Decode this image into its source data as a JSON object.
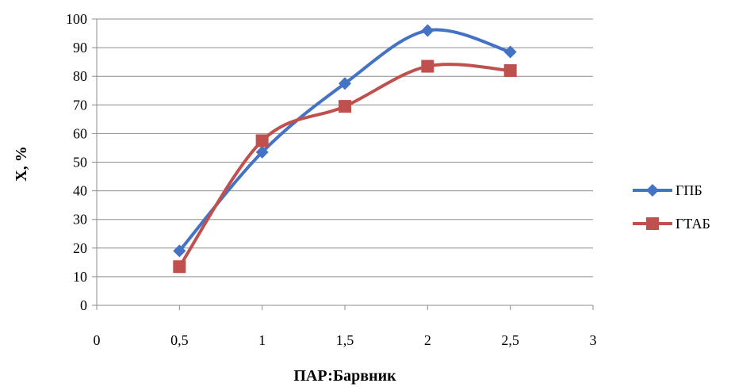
{
  "chart_data": {
    "type": "line",
    "title": "",
    "xlabel": "ПАР:Барвник",
    "ylabel": "X, %",
    "xlim": [
      0,
      3
    ],
    "ylim": [
      0,
      100
    ],
    "x_ticks": [
      "0",
      "0,5",
      "1",
      "1,5",
      "2",
      "2,5",
      "3"
    ],
    "y_ticks": [
      "0",
      "10",
      "20",
      "30",
      "40",
      "50",
      "60",
      "70",
      "80",
      "90",
      "100"
    ],
    "grid": "horizontal",
    "smooth": true,
    "legend_position": "right",
    "series": [
      {
        "name": "ГПБ",
        "color": "#4472C4",
        "marker": "diamond",
        "x": [
          0.5,
          1,
          1.5,
          2,
          2.5
        ],
        "y": [
          19,
          53.5,
          77.5,
          96,
          88.5
        ]
      },
      {
        "name": "ГТАБ",
        "color": "#C0504D",
        "marker": "square",
        "x": [
          0.5,
          1,
          1.5,
          2,
          2.5
        ],
        "y": [
          13.5,
          57.5,
          69.5,
          83.5,
          82
        ]
      }
    ]
  }
}
